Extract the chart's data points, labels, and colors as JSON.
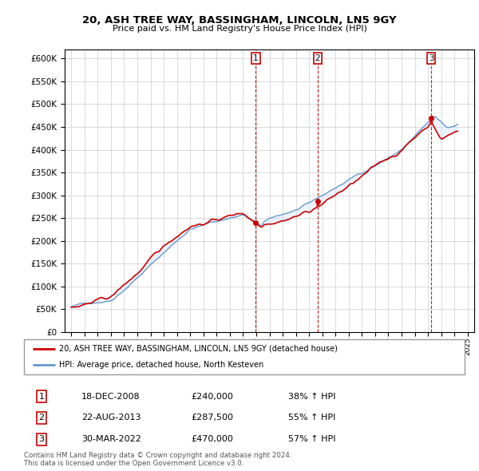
{
  "title": "20, ASH TREE WAY, BASSINGHAM, LINCOLN, LN5 9GY",
  "subtitle": "Price paid vs. HM Land Registry's House Price Index (HPI)",
  "hpi_label": "HPI: Average price, detached house, North Kesteven",
  "property_label": "20, ASH TREE WAY, BASSINGHAM, LINCOLN, LN5 9GY (detached house)",
  "copyright_text": "Contains HM Land Registry data © Crown copyright and database right 2024.\nThis data is licensed under the Open Government Licence v3.0.",
  "transactions": [
    {
      "num": 1,
      "date": "18-DEC-2008",
      "price": 240000,
      "pct": "38%",
      "dir": "↑"
    },
    {
      "num": 2,
      "date": "22-AUG-2013",
      "price": 287500,
      "pct": "55%",
      "dir": "↑"
    },
    {
      "num": 3,
      "date": "30-MAR-2022",
      "price": 470000,
      "pct": "57%",
      "dir": "↑"
    }
  ],
  "sale_dates_decimal": [
    2008.97,
    2013.64,
    2022.25
  ],
  "sale_prices": [
    240000,
    287500,
    470000
  ],
  "hpi_color": "#6699cc",
  "property_color": "#cc0000",
  "shading_color": "#cce0ff",
  "ylim": [
    0,
    620000
  ],
  "yticks": [
    0,
    50000,
    100000,
    150000,
    200000,
    250000,
    300000,
    350000,
    400000,
    450000,
    500000,
    550000,
    600000
  ],
  "xlim": [
    1994.5,
    2025.5
  ],
  "xticks": [
    1995,
    1996,
    1997,
    1998,
    1999,
    2000,
    2001,
    2002,
    2003,
    2004,
    2005,
    2006,
    2007,
    2008,
    2009,
    2010,
    2011,
    2012,
    2013,
    2014,
    2015,
    2016,
    2017,
    2018,
    2019,
    2020,
    2021,
    2022,
    2023,
    2024,
    2025
  ]
}
